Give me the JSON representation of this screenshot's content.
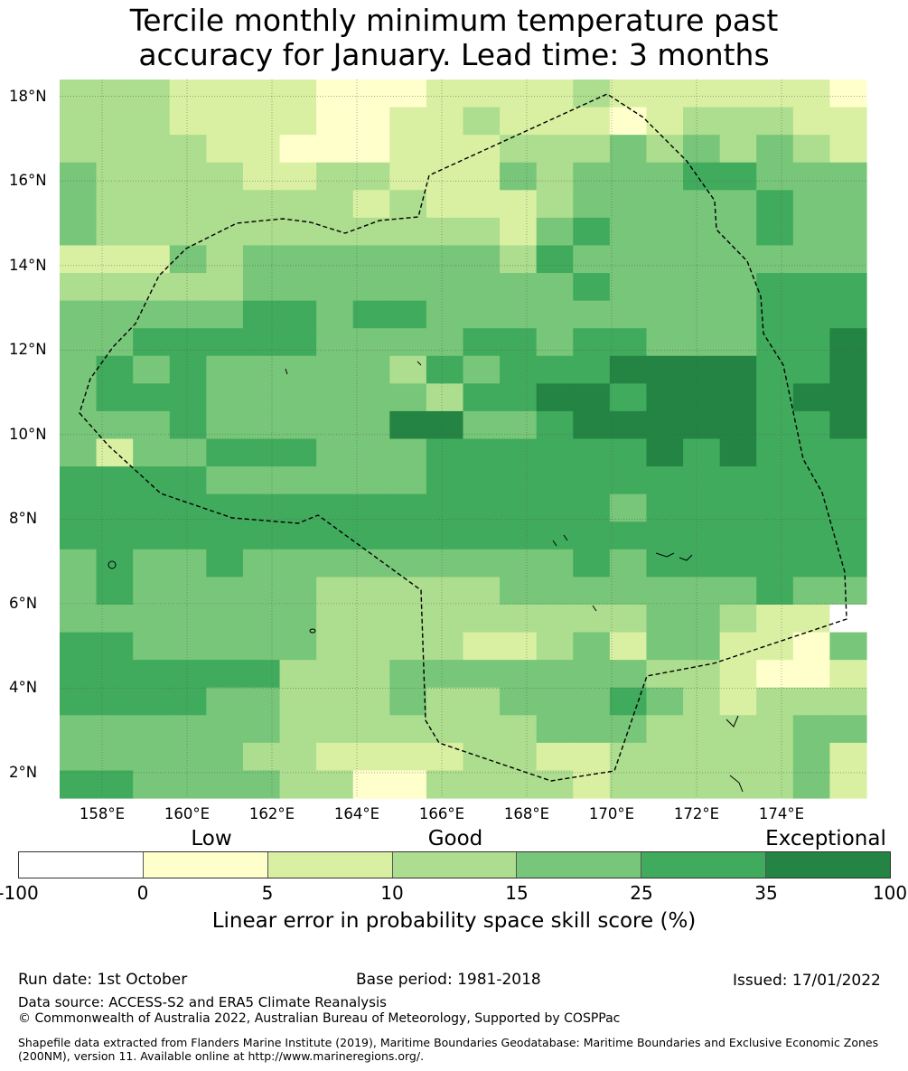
{
  "title_line1": "Tercile monthly minimum temperature past",
  "title_line2": "accuracy for January. Lead time: 3 months",
  "map": {
    "lon_range": [
      157.0,
      176.0
    ],
    "lat_range": [
      1.4,
      18.4
    ],
    "lat_ticks": [
      "18°N",
      "16°N",
      "14°N",
      "12°N",
      "10°N",
      "8°N",
      "6°N",
      "4°N",
      "2°N"
    ],
    "lon_ticks": [
      "158°E",
      "160°E",
      "162°E",
      "164°E",
      "166°E",
      "168°E",
      "170°E",
      "172°E",
      "174°E"
    ],
    "colors": [
      "#ffffff",
      "#ffffcc",
      "#d9f0a3",
      "#addd8e",
      "#78c679",
      "#41ab5d",
      "#238443"
    ],
    "grid_rows": [
      "3332222111222232222221",
      "3332222112232221233322",
      "3333221112223334343432",
      "4333322332224344455444",
      "4333333323222344444544",
      "4333333333332454444544",
      "2224344444443544444444",
      "3333344444444454444555",
      "4444455455444444444555",
      "4455555444455455444556",
      "4545444443545556666556",
      "4555444444355665666566",
      "4445444446644566666556",
      "4244555444555555656555",
      "5555444444555555555555",
      "5555555555555554555555",
      "5555555555555555555555",
      "4544544444444454555555",
      "4544444333334444444544",
      "4444444333333333443220",
      "5544444333322342442214",
      "5555553334444444332112",
      "5555443334334445432333",
      "4444443333333444333344",
      "4444433222233223333342",
      "5544443311333323333342"
    ]
  },
  "colorbar": {
    "category_low": "Low",
    "category_good": "Good",
    "category_exceptional": "Exceptional",
    "ticks": [
      "-100",
      "0",
      "5",
      "10",
      "15",
      "25",
      "35",
      "100"
    ],
    "label": "Linear error in probability space skill score (%)"
  },
  "footer": {
    "run_date": "Run date: 1st October",
    "base_period": "Base period: 1981-2018",
    "issued": "Issued: 17/01/2022",
    "data_source": "Data source: ACCESS-S2 and ERA5 Climate Reanalysis",
    "copyright": "© Commonwealth of Australia 2022, Australian Bureau of Meteorology, Supported by COSPPac",
    "shapefile": "Shapefile data extracted from Flanders Marine Institute (2019), Maritime Boundaries Geodatabase: Maritime Boundaries and Exclusive Economic Zones (200NM), version 11. Available online at http://www.marineregions.org/."
  }
}
